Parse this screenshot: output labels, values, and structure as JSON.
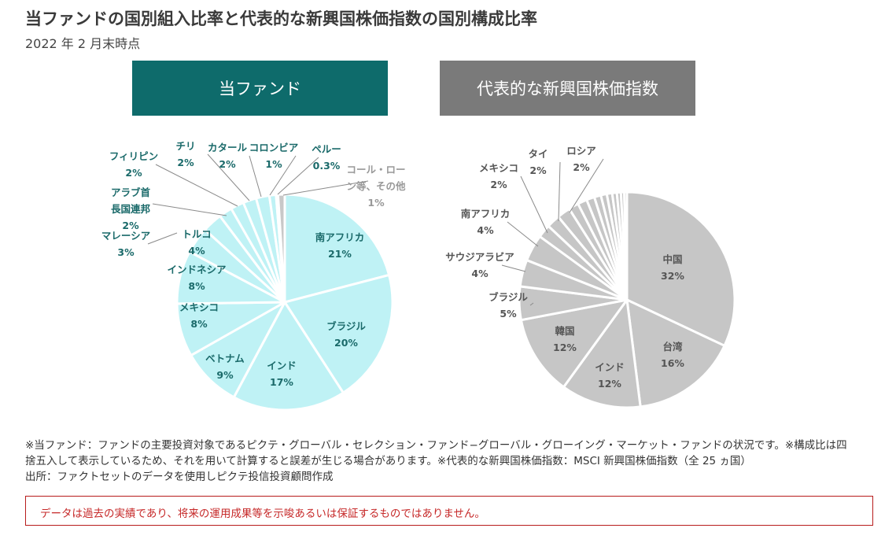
{
  "title": "当ファンドの国別組入比率と代表的な新興国株価指数の国別構成比率",
  "subtitle": "2022 年 2 月末時点",
  "colors": {
    "fund_fill": "#bff2f5",
    "fund_header": "#0e6b6b",
    "fund_label": "#1a6a6a",
    "other_fill": "#c8c8c8",
    "other_label": "#999999",
    "em_fill": "#c6c6c6",
    "em_header": "#7a7a7a",
    "em_label": "#555555",
    "disclaimer": "#c62828"
  },
  "chart_data": [
    {
      "type": "pie",
      "title": "当ファンド",
      "slices": [
        {
          "label": "南アフリカ",
          "value": 21,
          "display": "21%"
        },
        {
          "label": "ブラジル",
          "value": 20,
          "display": "20%"
        },
        {
          "label": "インド",
          "value": 17,
          "display": "17%"
        },
        {
          "label": "ベトナム",
          "value": 9,
          "display": "9%"
        },
        {
          "label": "メキシコ",
          "value": 8,
          "display": "8%"
        },
        {
          "label": "インドネシア",
          "value": 8,
          "display": "8%"
        },
        {
          "label": "トルコ",
          "value": 4,
          "display": "4%"
        },
        {
          "label": "マレーシア",
          "value": 3,
          "display": "3%"
        },
        {
          "label": "アラブ首長国連邦",
          "value": 2,
          "display": "2%"
        },
        {
          "label": "フィリピン",
          "value": 2,
          "display": "2%"
        },
        {
          "label": "チリ",
          "value": 2,
          "display": "2%"
        },
        {
          "label": "カタール",
          "value": 2,
          "display": "2%"
        },
        {
          "label": "コロンビア",
          "value": 1,
          "display": "1%"
        },
        {
          "label": "ペルー",
          "value": 0.3,
          "display": "0.3%"
        },
        {
          "label": "コール・ローン等、その他",
          "value": 1,
          "display": "1%"
        }
      ]
    },
    {
      "type": "pie",
      "title": "代表的な新興国株価指数",
      "slices": [
        {
          "label": "中国",
          "value": 32,
          "display": "32%"
        },
        {
          "label": "台湾",
          "value": 16,
          "display": "16%"
        },
        {
          "label": "インド",
          "value": 12,
          "display": "12%"
        },
        {
          "label": "韓国",
          "value": 12,
          "display": "12%"
        },
        {
          "label": "ブラジル",
          "value": 5,
          "display": "5%"
        },
        {
          "label": "サウジアラビア",
          "value": 4,
          "display": "4%"
        },
        {
          "label": "南アフリカ",
          "value": 4,
          "display": "4%"
        },
        {
          "label": "メキシコ",
          "value": 2,
          "display": "2%"
        },
        {
          "label": "タイ",
          "value": 2,
          "display": "2%"
        },
        {
          "label": "ロシア",
          "value": 2,
          "display": "2%"
        },
        {
          "label": "",
          "value": 1.5,
          "display": ""
        },
        {
          "label": "",
          "value": 1.4,
          "display": ""
        },
        {
          "label": "",
          "value": 1.2,
          "display": ""
        },
        {
          "label": "",
          "value": 1.0,
          "display": ""
        },
        {
          "label": "",
          "value": 0.9,
          "display": ""
        },
        {
          "label": "",
          "value": 0.8,
          "display": ""
        },
        {
          "label": "",
          "value": 0.7,
          "display": ""
        },
        {
          "label": "",
          "value": 0.6,
          "display": ""
        },
        {
          "label": "",
          "value": 0.5,
          "display": ""
        },
        {
          "label": "",
          "value": 0.4,
          "display": ""
        }
      ]
    }
  ],
  "notes": [
    "※当ファンド：ファンドの主要投資対象であるピクテ・グローバル・セレクション・ファンド−グローバル・グローイング・マーケット・ファンドの状況です。※構成比は四",
    "捨五入して表示しているため、それを用いて計算すると誤差が生じる場合があります。※代表的な新興国株価指数：MSCI 新興国株価指数（全 25 ヵ国）",
    "出所：ファクトセットのデータを使用しピクテ投信投資顧問作成"
  ],
  "disclaimer": "データは過去の実績であり、将来の運用成果等を示唆あるいは保証するものではありません。"
}
